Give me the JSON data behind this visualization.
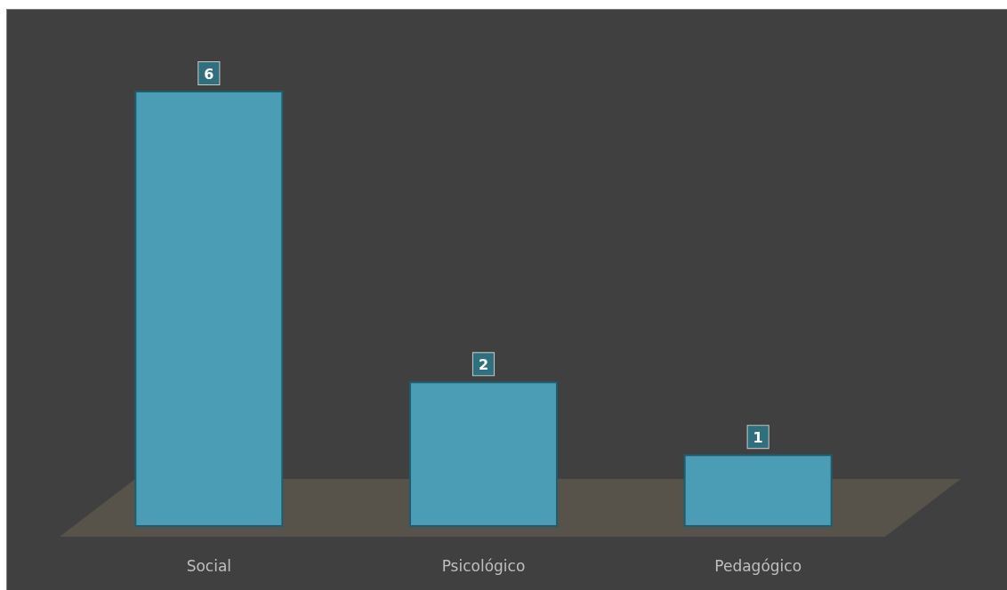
{
  "chart_data": {
    "type": "bar",
    "categories": [
      "Social",
      "Psicológico",
      "Pedagógico"
    ],
    "values": [
      6,
      2,
      1
    ],
    "color": "#4a9db5",
    "data_labels": true
  }
}
